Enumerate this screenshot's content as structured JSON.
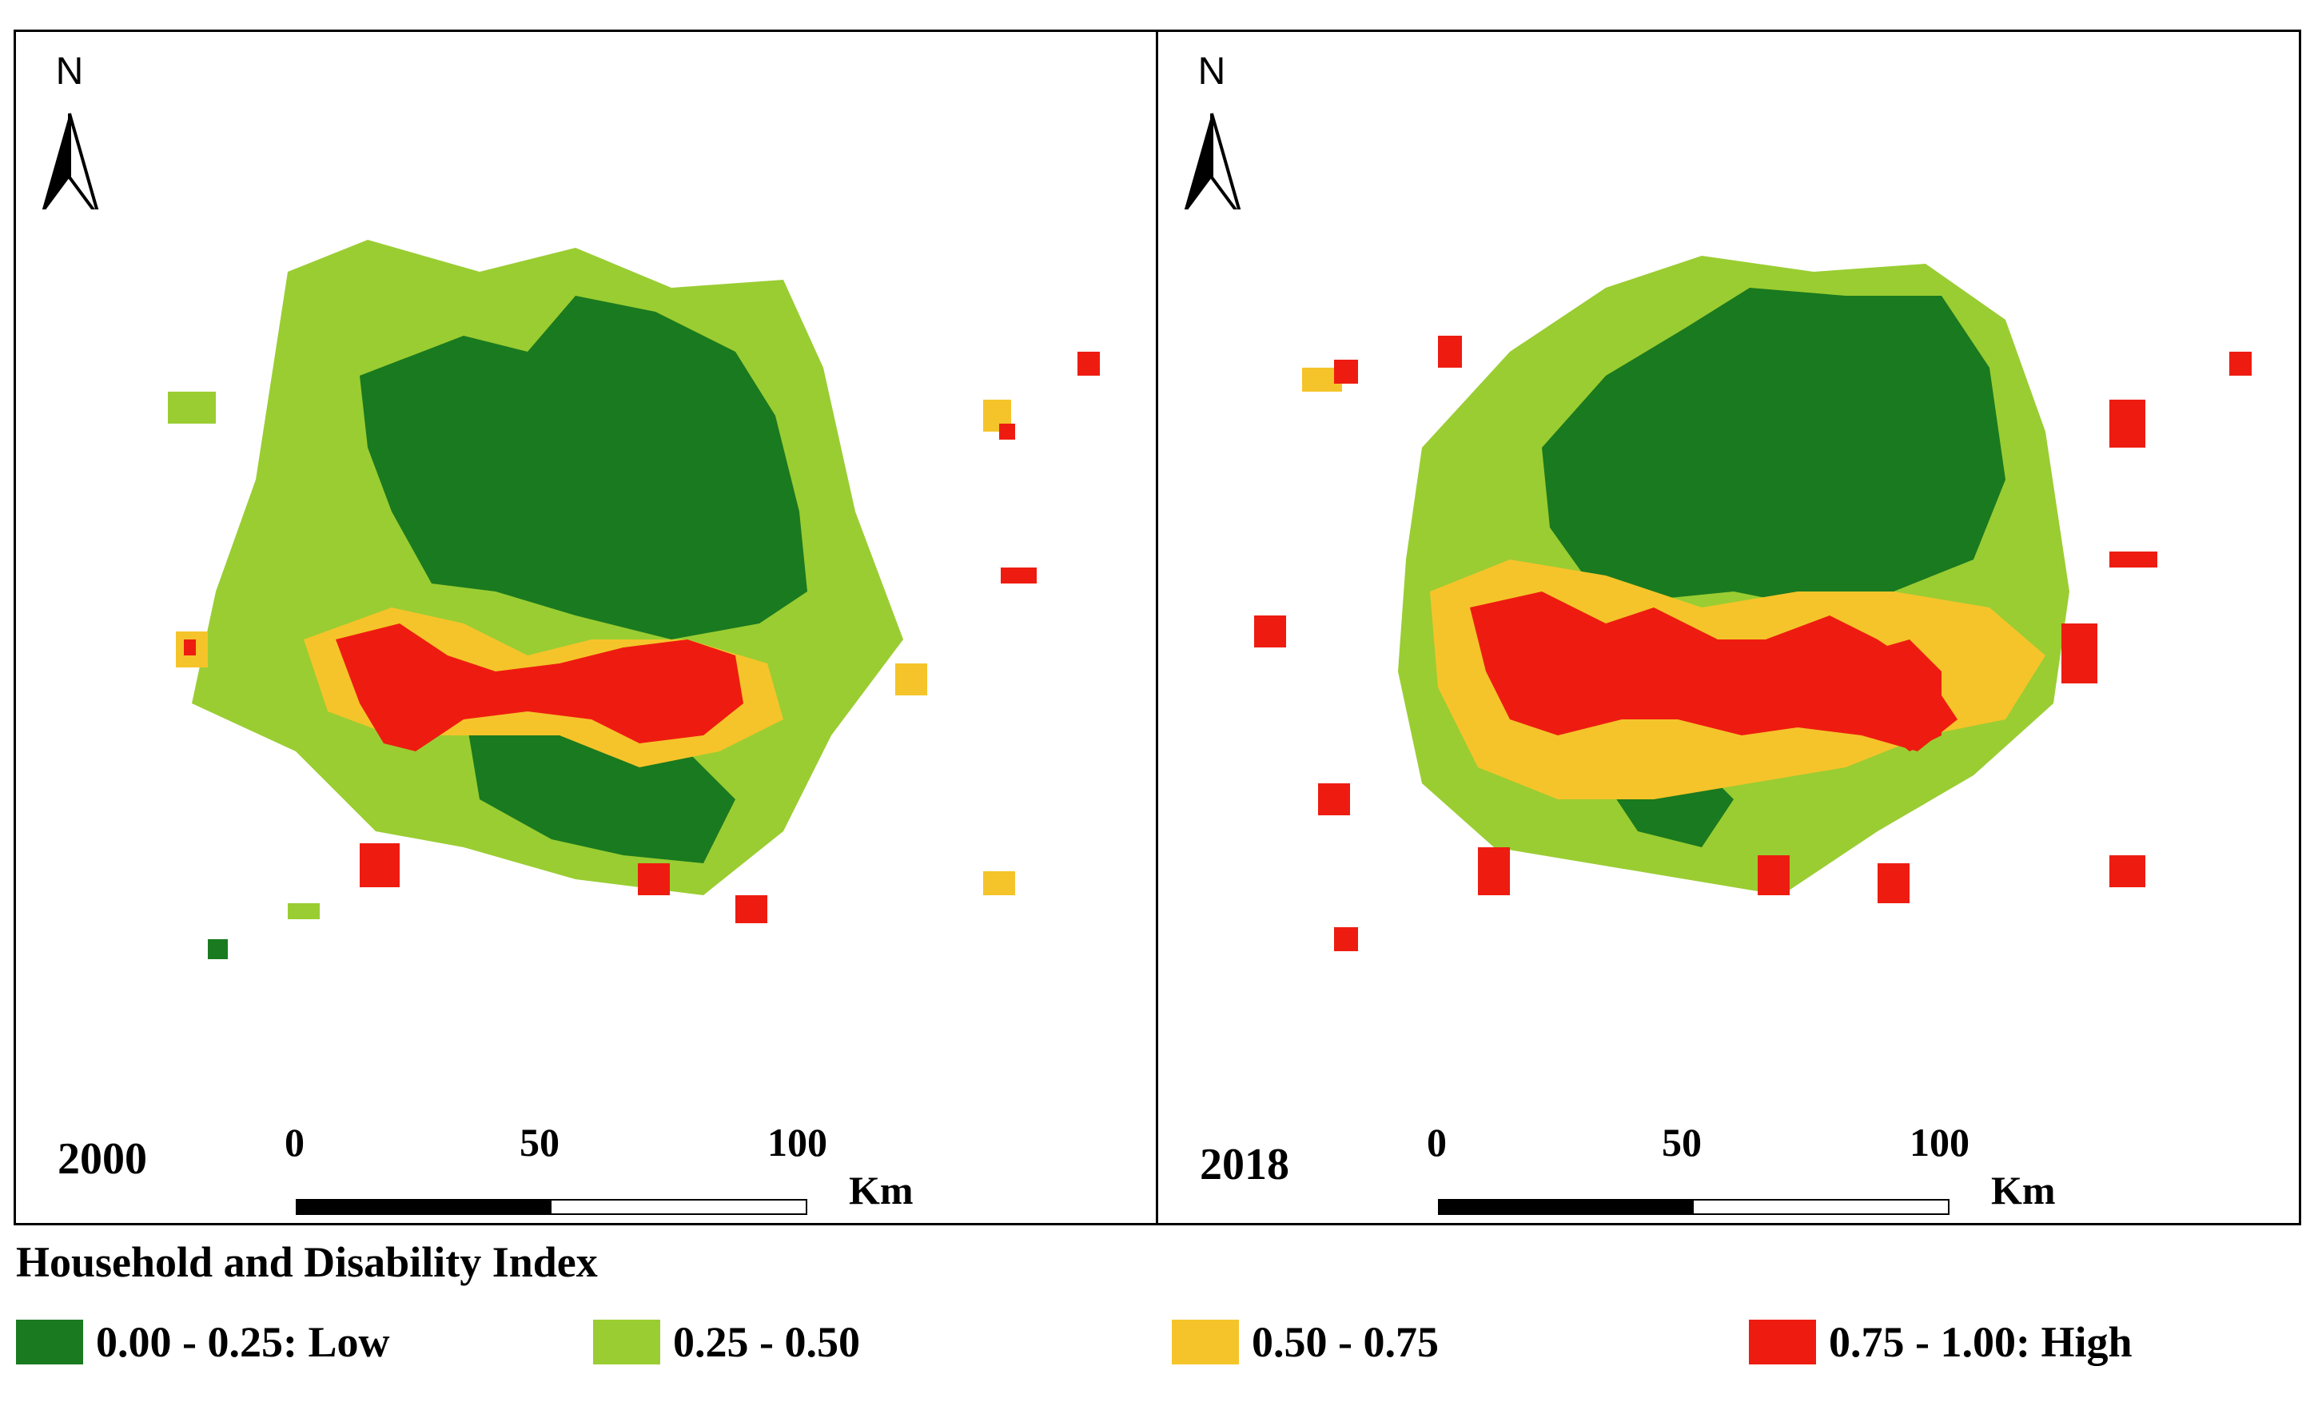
{
  "title": "Household and Disability Index",
  "north_label": "N",
  "panels": [
    {
      "id": "left",
      "year": "2000"
    },
    {
      "id": "right",
      "year": "2018"
    }
  ],
  "scale_bar": {
    "ticks": [
      "0",
      "50",
      "100"
    ],
    "unit": "Km"
  },
  "legend": [
    {
      "label": "0.00 - 0.25: Low",
      "color": "#1a7a1f"
    },
    {
      "label": "0.25 - 0.50",
      "color": "#9acd32"
    },
    {
      "label": "0.50 - 0.75",
      "color": "#f5c42a"
    },
    {
      "label": "0.75 - 1.00: High",
      "color": "#ee1c10"
    }
  ]
}
